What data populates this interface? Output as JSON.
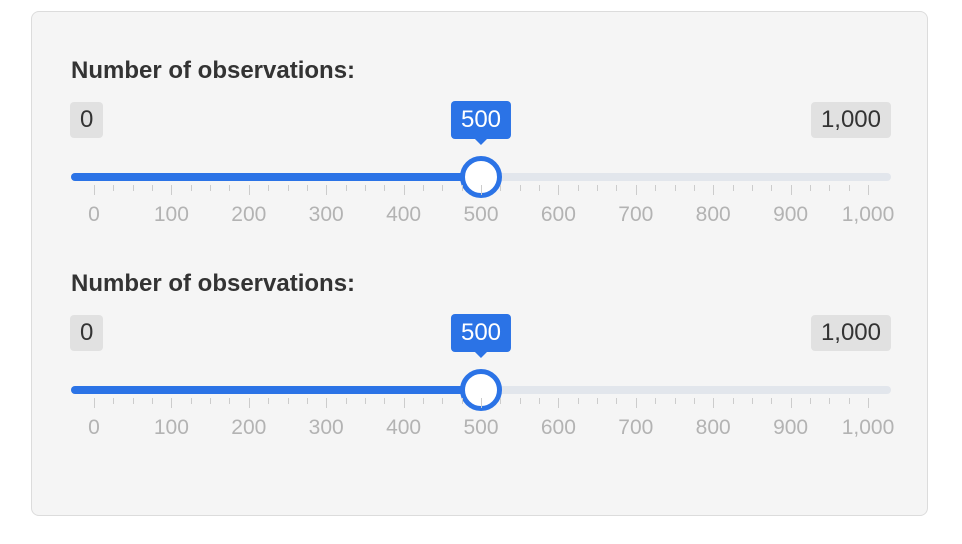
{
  "colors": {
    "accent": "#2b73e6",
    "track": "#e2e6ec",
    "panel": "#f5f5f5",
    "badge": "#e1e1e1"
  },
  "sliders": [
    {
      "label": "Number of observations:",
      "min_label": "0",
      "max_label": "1,000",
      "value_label": "500",
      "min": 0,
      "max": 1000,
      "value": 500,
      "tick_labels": [
        "0",
        "100",
        "200",
        "300",
        "400",
        "500",
        "600",
        "700",
        "800",
        "900",
        "1,000"
      ]
    },
    {
      "label": "Number of observations:",
      "min_label": "0",
      "max_label": "1,000",
      "value_label": "500",
      "min": 0,
      "max": 1000,
      "value": 500,
      "tick_labels": [
        "0",
        "100",
        "200",
        "300",
        "400",
        "500",
        "600",
        "700",
        "800",
        "900",
        "1,000"
      ]
    }
  ]
}
